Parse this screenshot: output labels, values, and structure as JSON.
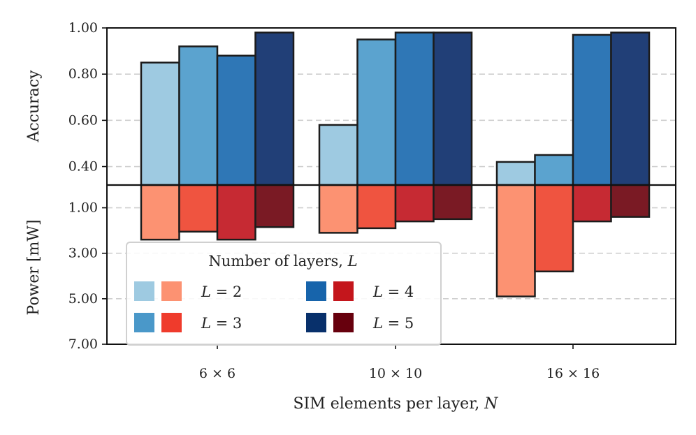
{
  "chart_data": {
    "type": "bar",
    "categories": [
      "6 × 6",
      "10 × 10",
      "16 × 16"
    ],
    "xlabel": "SIM elements per layer, N",
    "top_panel": {
      "ylabel": "Accuracy",
      "ylim": [
        0.32,
        1.0
      ],
      "yticks": [
        "0.40",
        "0.60",
        "0.80",
        "1.00"
      ],
      "ytick_values": [
        0.4,
        0.6,
        0.8,
        1.0
      ],
      "series": [
        {
          "name": "L = 2",
          "color": "#9ecae1",
          "values": [
            0.85,
            0.58,
            0.42
          ]
        },
        {
          "name": "L = 3",
          "color": "#5ba3cf",
          "values": [
            0.92,
            0.95,
            0.45
          ]
        },
        {
          "name": "L = 4",
          "color": "#2f77b6",
          "values": [
            0.88,
            0.98,
            0.97
          ]
        },
        {
          "name": "L = 5",
          "color": "#213f77",
          "values": [
            0.98,
            0.98,
            0.98
          ]
        }
      ]
    },
    "bottom_panel": {
      "ylabel": "Power [mW]",
      "ylim": [
        0.0,
        7.0
      ],
      "inverted": true,
      "yticks": [
        "1.00",
        "3.00",
        "5.00",
        "7.00"
      ],
      "ytick_values": [
        1,
        3,
        5,
        7
      ],
      "series": [
        {
          "name": "L = 2",
          "color": "#fc9272",
          "values": [
            2.4,
            2.1,
            4.9
          ]
        },
        {
          "name": "L = 3",
          "color": "#ef5440",
          "values": [
            2.05,
            1.9,
            3.8
          ]
        },
        {
          "name": "L = 4",
          "color": "#c62a33",
          "values": [
            2.4,
            1.6,
            1.6
          ]
        },
        {
          "name": "L = 5",
          "color": "#7a1a24",
          "values": [
            1.85,
            1.5,
            1.4
          ]
        }
      ]
    },
    "legend": {
      "title": "Number of layers, L",
      "position": "lower-left",
      "entries": [
        {
          "label": "L = 2",
          "blue": "#9ecae1",
          "red": "#fc9272"
        },
        {
          "label": "L = 3",
          "blue": "#4a98c9",
          "red": "#ef3b2c"
        },
        {
          "label": "L = 4",
          "blue": "#1764ab",
          "red": "#c4161c"
        },
        {
          "label": "L = 5",
          "blue": "#08306b",
          "red": "#67000d"
        }
      ]
    },
    "grid": "horizontal-dashed"
  }
}
